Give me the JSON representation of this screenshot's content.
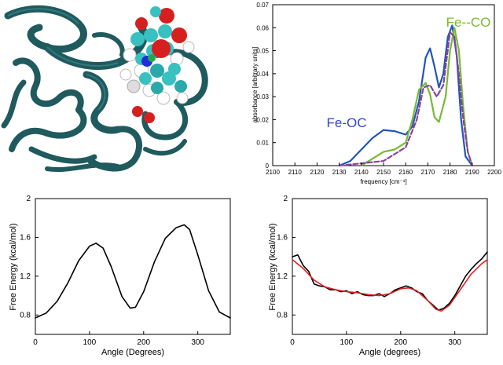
{
  "chart_data": [
    {
      "type": "image",
      "panel": "protein-structure"
    },
    {
      "type": "line",
      "xlabel": "frequency [cm⁻¹]",
      "ylabel": "absorbance [arbitrary units]",
      "xlim": [
        2100,
        2200
      ],
      "ylim": [
        0,
        0.07
      ],
      "xticks": [
        "2100",
        "2110",
        "2120",
        "2130",
        "2140",
        "2150",
        "2160",
        "2170",
        "2180",
        "2190",
        "2200"
      ],
      "yticks": [
        "0",
        "0.01",
        "0.02",
        "0.03",
        "0.04",
        "0.05",
        "0.06",
        "0.07"
      ],
      "annotations": [
        {
          "text": "Fe-OC",
          "color": "#3344cc"
        },
        {
          "text": "Fe--CO",
          "color": "#77bb33"
        }
      ],
      "series": [
        {
          "color": "#2255bb",
          "style": "solid",
          "x": [
            2130,
            2135,
            2140,
            2145,
            2150,
            2155,
            2160,
            2163,
            2166,
            2169,
            2171,
            2173,
            2175,
            2177,
            2179,
            2181,
            2183,
            2185,
            2187,
            2190
          ],
          "y": [
            0.0,
            0.002,
            0.007,
            0.012,
            0.0155,
            0.015,
            0.0135,
            0.017,
            0.028,
            0.047,
            0.051,
            0.043,
            0.034,
            0.04,
            0.056,
            0.061,
            0.048,
            0.02,
            0.004,
            0.0
          ]
        },
        {
          "color": "#77bb33",
          "style": "solid",
          "x": [
            2140,
            2145,
            2150,
            2155,
            2160,
            2163,
            2166,
            2169,
            2171,
            2173,
            2175,
            2178,
            2180,
            2182,
            2184,
            2186,
            2188,
            2190
          ],
          "y": [
            0.0,
            0.003,
            0.006,
            0.007,
            0.01,
            0.02,
            0.033,
            0.036,
            0.031,
            0.021,
            0.019,
            0.03,
            0.05,
            0.06,
            0.05,
            0.025,
            0.006,
            0.0
          ]
        },
        {
          "color": "#884499",
          "style": "dashed",
          "x": [
            2130,
            2140,
            2150,
            2160,
            2165,
            2168,
            2171,
            2174,
            2177,
            2180,
            2182,
            2184,
            2186,
            2188,
            2190
          ],
          "y": [
            0.0,
            0.001,
            0.002,
            0.008,
            0.02,
            0.034,
            0.035,
            0.03,
            0.035,
            0.058,
            0.056,
            0.04,
            0.02,
            0.006,
            0.0
          ]
        }
      ]
    },
    {
      "type": "line",
      "xlabel": "Angle (Degrees)",
      "ylabel": "Free Energy (kcal/mol)",
      "xlim": [
        0,
        360
      ],
      "ylim": [
        0.6,
        2
      ],
      "xticks": [
        "0",
        "100",
        "200",
        "300"
      ],
      "yticks": [
        "0.8",
        "1.2",
        "1.6",
        "2"
      ],
      "series": [
        {
          "color": "#000000",
          "style": "solid",
          "x": [
            0,
            20,
            40,
            60,
            80,
            100,
            112,
            125,
            140,
            160,
            175,
            185,
            200,
            220,
            240,
            260,
            275,
            285,
            300,
            320,
            340,
            360
          ],
          "y": [
            0.77,
            0.82,
            0.94,
            1.13,
            1.36,
            1.51,
            1.54,
            1.49,
            1.3,
            0.99,
            0.87,
            0.88,
            1.04,
            1.35,
            1.59,
            1.7,
            1.73,
            1.68,
            1.42,
            1.05,
            0.83,
            0.77
          ]
        }
      ]
    },
    {
      "type": "line",
      "xlabel": "Angle (degrees)",
      "ylabel": "Free Energy (kcal/mol)",
      "xlim": [
        0,
        360
      ],
      "ylim": [
        0.6,
        2
      ],
      "xticks": [
        "0",
        "100",
        "200",
        "300"
      ],
      "yticks": [
        "0.8",
        "1.2",
        "1.6",
        "2"
      ],
      "series": [
        {
          "color": "#000000",
          "style": "solid",
          "x": [
            0,
            10,
            20,
            30,
            40,
            50,
            60,
            70,
            80,
            90,
            100,
            110,
            120,
            130,
            140,
            150,
            160,
            170,
            180,
            190,
            200,
            210,
            220,
            230,
            240,
            250,
            260,
            270,
            280,
            290,
            300,
            310,
            320,
            330,
            340,
            350,
            360
          ],
          "y": [
            1.4,
            1.42,
            1.31,
            1.25,
            1.12,
            1.1,
            1.09,
            1.06,
            1.06,
            1.04,
            1.05,
            1.02,
            1.04,
            1.01,
            1.0,
            1.0,
            1.02,
            0.99,
            1.02,
            1.06,
            1.08,
            1.1,
            1.08,
            1.04,
            1.02,
            0.95,
            0.9,
            0.85,
            0.87,
            0.92,
            1.0,
            1.1,
            1.2,
            1.27,
            1.33,
            1.38,
            1.45
          ]
        },
        {
          "color": "#dd2222",
          "style": "solid",
          "x": [
            0,
            20,
            40,
            60,
            80,
            100,
            120,
            140,
            160,
            180,
            200,
            215,
            230,
            250,
            265,
            275,
            290,
            310,
            330,
            350,
            360
          ],
          "y": [
            1.37,
            1.28,
            1.16,
            1.09,
            1.06,
            1.04,
            1.03,
            1.01,
            1.0,
            1.02,
            1.07,
            1.08,
            1.05,
            0.95,
            0.86,
            0.84,
            0.9,
            1.06,
            1.22,
            1.33,
            1.37
          ]
        }
      ]
    }
  ]
}
